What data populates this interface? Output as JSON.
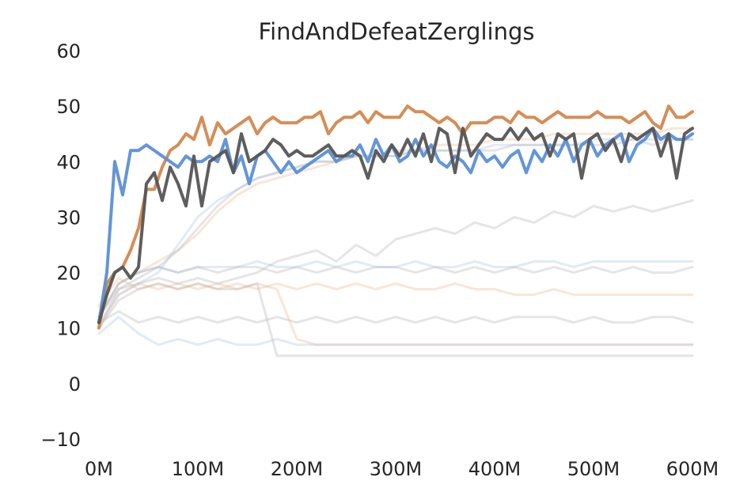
{
  "chart_data": {
    "type": "line",
    "title": "FindAndDefeatZerglings",
    "xlabel": "",
    "ylabel": "",
    "xlim": [
      0,
      600
    ],
    "ylim": [
      -10,
      60
    ],
    "x_ticks": [
      0,
      100,
      200,
      300,
      400,
      500,
      600
    ],
    "x_tick_labels": [
      "0M",
      "100M",
      "200M",
      "300M",
      "400M",
      "500M",
      "600M"
    ],
    "y_ticks": [
      -10,
      0,
      10,
      20,
      30,
      40,
      50,
      60
    ],
    "y_tick_labels": [
      "−10",
      "0",
      "10",
      "20",
      "30",
      "40",
      "50",
      "60"
    ],
    "grid": false,
    "colors": {
      "orange": "#d4874e",
      "blue": "#5b8fd6",
      "gray": "#555555",
      "faint_orange": "#f0b48a",
      "faint_blue": "#a8c2ec",
      "faint_gray": "#b4b4b4"
    },
    "series": [
      {
        "color": "orange",
        "emphasis": "highlight",
        "x": [
          0,
          8,
          16,
          24,
          32,
          40,
          48,
          56,
          64,
          72,
          80,
          88,
          96,
          104,
          112,
          120,
          128,
          136,
          144,
          152,
          160,
          168,
          176,
          184,
          192,
          200,
          208,
          216,
          224,
          232,
          240,
          248,
          256,
          264,
          272,
          280,
          288,
          296,
          304,
          312,
          320,
          328,
          336,
          344,
          352,
          360,
          368,
          376,
          384,
          392,
          400,
          408,
          416,
          424,
          432,
          440,
          448,
          456,
          464,
          472,
          480,
          488,
          496,
          504,
          512,
          520,
          528,
          536,
          544,
          552,
          560,
          568,
          576,
          584,
          592,
          600
        ],
        "y": [
          10,
          18,
          20,
          21,
          24,
          28,
          35,
          35,
          39,
          42,
          43,
          45,
          44,
          48,
          43,
          47,
          45,
          46,
          47,
          48,
          45,
          47,
          48,
          47,
          47,
          47,
          48,
          48,
          49,
          45,
          47,
          48,
          48,
          49,
          47,
          49,
          48,
          48,
          48,
          50,
          49,
          49,
          48,
          47,
          48,
          47,
          45,
          47,
          47,
          47,
          48,
          48,
          47,
          49,
          48,
          48,
          47,
          48,
          49,
          48,
          48,
          48,
          48,
          49,
          48,
          48,
          48,
          47,
          48,
          49,
          47,
          46,
          50,
          48,
          48,
          49
        ]
      },
      {
        "color": "blue",
        "emphasis": "highlight",
        "x": [
          0,
          8,
          16,
          24,
          32,
          40,
          48,
          56,
          64,
          72,
          80,
          88,
          96,
          104,
          112,
          120,
          128,
          136,
          144,
          152,
          160,
          168,
          176,
          184,
          192,
          200,
          208,
          216,
          224,
          232,
          240,
          248,
          256,
          264,
          272,
          280,
          288,
          296,
          304,
          312,
          320,
          328,
          336,
          344,
          352,
          360,
          368,
          376,
          384,
          392,
          400,
          408,
          416,
          424,
          432,
          440,
          448,
          456,
          464,
          472,
          480,
          488,
          496,
          504,
          512,
          520,
          528,
          536,
          544,
          552,
          560,
          568,
          576,
          584,
          592,
          600
        ],
        "y": [
          11,
          20,
          40,
          34,
          42,
          42,
          43,
          42,
          41,
          40,
          39,
          41,
          40,
          40,
          41,
          40,
          44,
          38,
          41,
          36,
          41,
          42,
          40,
          38,
          40,
          38,
          39,
          40,
          41,
          42,
          40,
          41,
          41,
          43,
          40,
          44,
          41,
          43,
          40,
          41,
          44,
          41,
          43,
          40,
          39,
          41,
          40,
          38,
          42,
          40,
          41,
          39,
          41,
          42,
          38,
          42,
          40,
          43,
          41,
          44,
          40,
          43,
          44,
          41,
          43,
          44,
          45,
          40,
          43,
          44,
          46,
          44,
          45,
          44,
          44,
          45
        ]
      },
      {
        "color": "gray",
        "emphasis": "highlight",
        "x": [
          0,
          8,
          16,
          24,
          32,
          40,
          48,
          56,
          64,
          72,
          80,
          88,
          96,
          104,
          112,
          120,
          128,
          136,
          144,
          152,
          160,
          168,
          176,
          184,
          192,
          200,
          208,
          216,
          224,
          232,
          240,
          248,
          256,
          264,
          272,
          280,
          288,
          296,
          304,
          312,
          320,
          328,
          336,
          344,
          352,
          360,
          368,
          376,
          384,
          392,
          400,
          408,
          416,
          424,
          432,
          440,
          448,
          456,
          464,
          472,
          480,
          488,
          496,
          504,
          512,
          520,
          528,
          536,
          544,
          552,
          560,
          568,
          576,
          584,
          592,
          600
        ],
        "y": [
          11,
          16,
          20,
          21,
          19,
          21,
          36,
          38,
          33,
          39,
          36,
          32,
          41,
          32,
          40,
          41,
          42,
          38,
          45,
          40,
          41,
          42,
          44,
          43,
          41,
          42,
          41,
          41,
          42,
          43,
          41,
          41,
          42,
          41,
          37,
          42,
          40,
          43,
          41,
          44,
          41,
          45,
          40,
          46,
          45,
          38,
          46,
          41,
          43,
          45,
          44,
          44,
          46,
          44,
          46,
          44,
          45,
          41,
          45,
          44,
          45,
          37,
          44,
          45,
          42,
          44,
          40,
          45,
          44,
          45,
          46,
          41,
          45,
          37,
          45,
          46
        ]
      },
      {
        "color": "faint_orange",
        "emphasis": "faint",
        "x": [
          0,
          20,
          40,
          60,
          80,
          100,
          120,
          140,
          160,
          180,
          200,
          220,
          240,
          260,
          280,
          300,
          320,
          340,
          360,
          380,
          400,
          420,
          440,
          460,
          480,
          500,
          520,
          540,
          560,
          580,
          600
        ],
        "y": [
          14,
          19,
          17,
          18,
          17,
          18,
          17,
          18,
          17,
          18,
          17,
          18,
          17,
          18,
          17,
          18,
          17,
          17,
          18,
          17,
          17,
          16,
          16,
          17,
          16,
          16,
          16,
          16,
          16,
          16,
          16
        ]
      },
      {
        "color": "faint_orange",
        "emphasis": "faint",
        "x": [
          0,
          20,
          40,
          60,
          80,
          100,
          120,
          140,
          160,
          180,
          200,
          220,
          240,
          260,
          280,
          300,
          320,
          340,
          360,
          380,
          400,
          420,
          440,
          460,
          480,
          500,
          520,
          540,
          560,
          580,
          600
        ],
        "y": [
          10,
          16,
          18,
          17,
          18,
          17,
          18,
          17,
          18,
          17,
          8,
          7,
          7,
          7,
          7,
          7,
          7,
          7,
          7,
          7,
          7,
          7,
          7,
          7,
          7,
          7,
          7,
          7,
          7,
          7,
          7
        ]
      },
      {
        "color": "faint_orange",
        "emphasis": "faint",
        "x": [
          0,
          20,
          40,
          60,
          80,
          100,
          120,
          140,
          160,
          180,
          200,
          220,
          240,
          260,
          280,
          300,
          320,
          340,
          360,
          380,
          400,
          420,
          440,
          460,
          480,
          500,
          520,
          540,
          560,
          580,
          600
        ],
        "y": [
          12,
          18,
          20,
          22,
          24,
          27,
          31,
          34,
          36,
          37,
          38,
          39,
          40,
          41,
          41,
          42,
          42,
          43,
          43,
          43,
          44,
          44,
          44,
          45,
          45,
          45,
          45,
          45,
          45,
          46,
          46
        ]
      },
      {
        "color": "faint_blue",
        "emphasis": "faint",
        "x": [
          0,
          20,
          40,
          60,
          80,
          100,
          120,
          140,
          160,
          180,
          200,
          220,
          240,
          260,
          280,
          300,
          320,
          340,
          360,
          380,
          400,
          420,
          440,
          460,
          480,
          500,
          520,
          540,
          560,
          580,
          600
        ],
        "y": [
          9,
          12,
          9,
          7,
          8,
          7,
          8,
          7,
          7,
          8,
          7,
          7,
          7,
          7,
          7,
          7,
          7,
          7,
          7,
          7,
          7,
          7,
          7,
          7,
          7,
          7,
          7,
          7,
          7,
          7,
          7
        ]
      },
      {
        "color": "faint_blue",
        "emphasis": "faint",
        "x": [
          0,
          20,
          40,
          60,
          80,
          100,
          120,
          140,
          160,
          180,
          200,
          220,
          240,
          260,
          280,
          300,
          320,
          340,
          360,
          380,
          400,
          420,
          440,
          460,
          480,
          500,
          520,
          540,
          560,
          580,
          600
        ],
        "y": [
          12,
          18,
          20,
          21,
          20,
          21,
          21,
          21,
          22,
          21,
          21,
          22,
          21,
          22,
          21,
          21,
          22,
          21,
          21,
          22,
          21,
          21,
          22,
          22,
          21,
          22,
          22,
          22,
          22,
          22,
          22
        ]
      },
      {
        "color": "faint_blue",
        "emphasis": "faint",
        "x": [
          0,
          20,
          40,
          60,
          80,
          100,
          120,
          140,
          160,
          180,
          200,
          220,
          240,
          260,
          280,
          300,
          320,
          340,
          360,
          380,
          400,
          420,
          440,
          460,
          480,
          500,
          520,
          540,
          560,
          580,
          600
        ],
        "y": [
          11,
          16,
          18,
          20,
          25,
          30,
          33,
          35,
          37,
          38,
          39,
          40,
          40,
          41,
          41,
          41,
          42,
          42,
          42,
          42,
          43,
          43,
          43,
          43,
          43,
          44,
          44,
          44,
          44,
          44,
          44
        ]
      },
      {
        "color": "faint_gray",
        "emphasis": "faint",
        "x": [
          0,
          20,
          40,
          60,
          80,
          100,
          120,
          140,
          160,
          180,
          200,
          220,
          240,
          260,
          280,
          300,
          320,
          340,
          360,
          380,
          400,
          420,
          440,
          460,
          480,
          500,
          520,
          540,
          560,
          580,
          600
        ],
        "y": [
          10,
          15,
          17,
          18,
          17,
          18,
          17,
          17,
          18,
          5,
          5,
          5,
          5,
          5,
          5,
          5,
          5,
          5,
          5,
          5,
          5,
          5,
          5,
          5,
          5,
          5,
          5,
          5,
          5,
          5,
          5
        ]
      },
      {
        "color": "faint_gray",
        "emphasis": "faint",
        "x": [
          0,
          20,
          40,
          60,
          80,
          100,
          120,
          140,
          160,
          180,
          200,
          220,
          240,
          260,
          280,
          300,
          320,
          340,
          360,
          380,
          400,
          420,
          440,
          460,
          480,
          500,
          520,
          540,
          560,
          580,
          600
        ],
        "y": [
          11,
          13,
          11,
          12,
          11,
          12,
          11,
          12,
          11,
          12,
          11,
          12,
          11,
          12,
          11,
          12,
          11,
          12,
          11,
          12,
          11,
          12,
          12,
          12,
          11,
          12,
          11,
          11,
          12,
          12,
          11
        ]
      },
      {
        "color": "faint_gray",
        "emphasis": "faint",
        "x": [
          0,
          20,
          40,
          60,
          80,
          100,
          120,
          140,
          160,
          180,
          200,
          220,
          240,
          260,
          280,
          300,
          320,
          340,
          360,
          380,
          400,
          420,
          440,
          460,
          480,
          500,
          520,
          540,
          560,
          580,
          600
        ],
        "y": [
          12,
          17,
          18,
          19,
          18,
          19,
          18,
          19,
          20,
          22,
          23,
          24,
          22,
          25,
          23,
          26,
          27,
          28,
          27,
          29,
          28,
          30,
          29,
          31,
          30,
          32,
          31,
          32,
          31,
          32,
          33
        ]
      },
      {
        "color": "faint_gray",
        "emphasis": "faint",
        "x": [
          0,
          20,
          40,
          60,
          80,
          100,
          120,
          140,
          160,
          180,
          200,
          220,
          240,
          260,
          280,
          300,
          320,
          340,
          360,
          380,
          400,
          420,
          440,
          460,
          480,
          500,
          520,
          540,
          560,
          580,
          600
        ],
        "y": [
          10,
          17,
          19,
          21,
          24,
          28,
          32,
          35,
          37,
          38,
          39,
          40,
          40,
          41,
          41,
          41,
          42,
          42,
          42,
          42,
          42,
          43,
          43,
          43,
          43,
          43,
          43,
          44,
          43,
          44,
          44
        ]
      },
      {
        "color": "faint_gray",
        "emphasis": "faint",
        "x": [
          0,
          20,
          40,
          60,
          80,
          100,
          120,
          140,
          160,
          180,
          200,
          220,
          240,
          260,
          280,
          300,
          320,
          340,
          360,
          380,
          400,
          420,
          440,
          460,
          480,
          500,
          520,
          540,
          560,
          580,
          600
        ],
        "y": [
          12,
          18,
          20,
          21,
          20,
          21,
          20,
          21,
          21,
          20,
          21,
          20,
          21,
          20,
          21,
          21,
          20,
          21,
          20,
          21,
          20,
          21,
          20,
          21,
          20,
          21,
          20,
          21,
          20,
          20,
          21
        ]
      }
    ]
  }
}
